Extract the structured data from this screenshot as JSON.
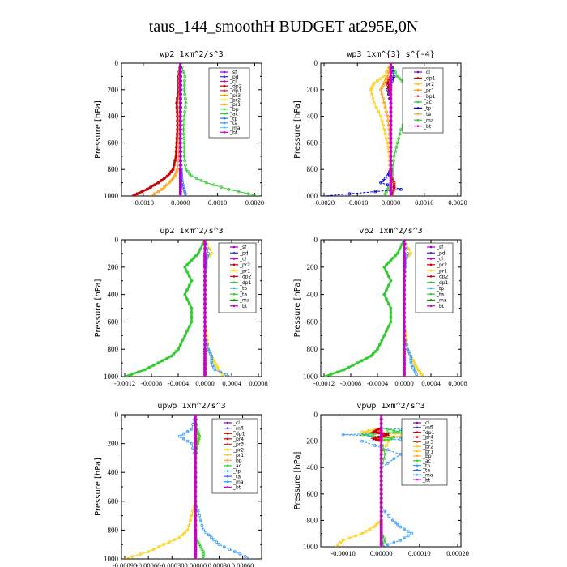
{
  "figure": {
    "title": "taus_144_smoothH  BUDGET at295E,0N"
  },
  "chart_data": [
    {
      "type": "line",
      "title": "wp2   1xm^2/s^3",
      "ylabel": "Pressure [hPa]",
      "xlim": [
        -0.0015,
        0.0021
      ],
      "ylim": [
        1000,
        0
      ],
      "xticks": [
        "-0.0010",
        "0.0000",
        "0.0010",
        "0.0020"
      ],
      "xtick_values": [
        -0.001,
        0.0,
        0.001,
        0.002
      ],
      "yticks": [
        "0",
        "200",
        "400",
        "600",
        "800",
        "1000"
      ],
      "ytick_values": [
        0,
        200,
        400,
        600,
        800,
        1000
      ],
      "legend_position": "upper-right",
      "legend": [
        "_sf",
        "_pd",
        "_cl",
        "_dp2",
        "_dp1",
        "_pr3",
        "_pr2",
        "_pr1",
        "_bp",
        "_ac",
        "_tp",
        "_ta",
        "_ma",
        "_bt"
      ],
      "p": [
        0,
        100,
        200,
        300,
        400,
        500,
        600,
        700,
        800,
        850,
        900,
        950,
        1000
      ],
      "series": [
        {
          "name": "_ac",
          "color": "#33cc33",
          "values": [
            0,
            0.00012,
            0.0001,
            0.00015,
            0.0001,
            8e-05,
            0.0001,
            0.0001,
            0.00015,
            0.0003,
            0.0007,
            0.0013,
            0.0021
          ]
        },
        {
          "name": "_dp2",
          "color": "#cc0000",
          "values": [
            0,
            -5e-05,
            -5e-05,
            -0.0001,
            -8e-05,
            -8e-05,
            -0.0001,
            -0.00012,
            -0.0002,
            -0.00035,
            -0.0006,
            -0.0009,
            -0.0013
          ]
        },
        {
          "name": "_pr1",
          "color": "#ff9900",
          "values": [
            0,
            -2e-05,
            -2e-05,
            -3e-05,
            -3e-05,
            -3e-05,
            -4e-05,
            -5e-05,
            -8e-05,
            -0.00015,
            -0.0003,
            -0.0005,
            -0.0008
          ]
        },
        {
          "name": "_tp",
          "color": "#3366ff",
          "values": [
            0,
            1e-05,
            1e-05,
            1e-05,
            0,
            0,
            0,
            1e-05,
            2e-05,
            3e-05,
            5e-05,
            0.0001,
            0.00015
          ]
        },
        {
          "name": "_bt",
          "color": "#cc00cc",
          "values": [
            0,
            0,
            0,
            0,
            0,
            0,
            0,
            0,
            0,
            0,
            0,
            0,
            0
          ]
        },
        {
          "name": "_sf",
          "color": "#9900cc",
          "values": [
            0,
            0,
            0,
            0,
            0,
            0,
            0,
            0,
            0,
            0,
            0,
            0,
            0
          ]
        }
      ]
    },
    {
      "type": "line",
      "title": "wp3   1xm^{3} s^{-4}",
      "ylabel": "Pressure [hPa]",
      "xlim": [
        -0.002,
        0.002
      ],
      "ylim": [
        1000,
        0
      ],
      "xticks": [
        "-0.0020",
        "-0.0010",
        "0.0000",
        "0.0010",
        "0.0020"
      ],
      "xtick_values": [
        -0.002,
        -0.001,
        0.0,
        0.001,
        0.002
      ],
      "yticks": [
        "0",
        "200",
        "400",
        "600",
        "800",
        "1000"
      ],
      "ytick_values": [
        0,
        200,
        400,
        600,
        800,
        1000
      ],
      "legend_position": "upper-right",
      "legend": [
        "_cl",
        "_dp1",
        "_pr2",
        "_pr1",
        "_bp1",
        "_ac",
        "_tp",
        "_ta",
        "_ma",
        "_bt"
      ],
      "p": [
        0,
        100,
        150,
        200,
        300,
        400,
        500,
        600,
        700,
        800,
        850,
        900,
        950,
        1000
      ],
      "series": [
        {
          "name": "_ac",
          "color": "#33cc33",
          "values": [
            0,
            0.0002,
            0.0004,
            0.0007,
            0.0008,
            0.0005,
            0.0003,
            0.0002,
            0.0001,
            5e-05,
            3e-05,
            0.0,
            -0.0001,
            -0.0002
          ]
        },
        {
          "name": "_pr2",
          "color": "#ffcc00",
          "values": [
            0,
            -0.0002,
            -0.0005,
            -0.0006,
            -0.0005,
            -0.0003,
            -0.0002,
            -0.0001,
            -5e-05,
            -3e-05,
            0.0,
            0.0,
            0.0,
            0.0
          ]
        },
        {
          "name": "_pr1",
          "color": "#ff9900",
          "values": [
            0,
            -0.0001,
            -0.0002,
            -0.0003,
            -0.0002,
            -0.0001,
            -5e-05,
            -3e-05,
            0.0,
            0.0,
            0.0,
            0.0,
            0.0,
            0.0
          ]
        },
        {
          "name": "_tp",
          "color": "#0000cc",
          "values": [
            0,
            0.0001,
            0.0,
            -0.0001,
            0.0,
            0.0,
            0.0,
            0.0,
            0.0,
            0.0,
            -0.0001,
            -0.0003,
            0.0003,
            -0.002
          ]
        },
        {
          "name": "_dp1",
          "color": "#cc0000",
          "values": [
            0,
            0.0,
            -0.0001,
            -5e-05,
            0.0,
            0.0,
            0.0,
            0.0,
            0.0,
            0.0,
            0.0,
            0.0001,
            0.0001,
            0.0
          ]
        },
        {
          "name": "_bt",
          "color": "#cc00cc",
          "values": [
            0,
            0,
            0,
            0,
            0,
            0,
            0,
            0,
            0,
            0,
            0,
            0,
            0,
            0
          ]
        }
      ]
    },
    {
      "type": "line",
      "title": "up2   1xm^2/s^3",
      "ylabel": "Pressure [hPa]",
      "xlim": [
        -0.0012,
        0.0008
      ],
      "ylim": [
        1000,
        0
      ],
      "xticks": [
        "-0.0012",
        "-0.0008",
        "-0.0004",
        "0.0000",
        "0.0004",
        "0.0008"
      ],
      "xtick_values": [
        -0.0012,
        -0.0008,
        -0.0004,
        0.0,
        0.0004,
        0.0008
      ],
      "yticks": [
        "0",
        "200",
        "400",
        "600",
        "800",
        "1000"
      ],
      "ytick_values": [
        0,
        200,
        400,
        600,
        800,
        1000
      ],
      "legend_position": "upper-right",
      "legend": [
        "_sf",
        "_pd",
        "_cl",
        "_pr2",
        "_pr1",
        "_dp2",
        "_dp1",
        "_tp",
        "_ta",
        "_ma",
        "_bt"
      ],
      "p": [
        0,
        100,
        150,
        200,
        300,
        400,
        500,
        600,
        700,
        800,
        850,
        900,
        950,
        1000
      ],
      "series": [
        {
          "name": "_dp1",
          "color": "#33cc33",
          "values": [
            0,
            -0.0001,
            -0.0002,
            -0.0003,
            -0.0002,
            -0.0003,
            -0.0002,
            -0.0002,
            -0.0003,
            -0.0004,
            -0.0005,
            -0.0007,
            -0.0009,
            -0.0012
          ]
        },
        {
          "name": "_pr1",
          "color": "#ffcc00",
          "values": [
            0,
            0.0001,
            0.0,
            0.0,
            0.0,
            0.0,
            0.0,
            0.0,
            3e-05,
            5e-05,
            0.0001,
            0.00015,
            0.0002,
            0.0003
          ]
        },
        {
          "name": "_tp",
          "color": "#3399ff",
          "values": [
            0,
            5e-05,
            2e-05,
            2e-05,
            0.0,
            0.0,
            0.0,
            0.0,
            0.0,
            5e-05,
            0.0001,
            0.0001,
            0.00015,
            0.0004
          ]
        },
        {
          "name": "_dp2",
          "color": "#cc0000",
          "values": [
            0,
            0,
            0,
            0,
            0,
            0,
            0,
            0,
            0,
            0,
            0,
            0,
            0,
            0
          ]
        },
        {
          "name": "_bt",
          "color": "#cc00cc",
          "values": [
            0,
            0,
            0,
            0,
            0,
            0,
            0,
            0,
            0,
            0,
            0,
            0,
            0,
            0
          ]
        }
      ]
    },
    {
      "type": "line",
      "title": "vp2   1xm^2/s^3",
      "ylabel": "Pressure [hPa]",
      "xlim": [
        -0.0012,
        0.0008
      ],
      "ylim": [
        1000,
        0
      ],
      "xticks": [
        "-0.0012",
        "-0.0008",
        "-0.0004",
        "0.0000",
        "0.0004",
        "0.0008"
      ],
      "xtick_values": [
        -0.0012,
        -0.0008,
        -0.0004,
        0.0,
        0.0004,
        0.0008
      ],
      "yticks": [
        "0",
        "200",
        "400",
        "600",
        "800",
        "1000"
      ],
      "ytick_values": [
        0,
        200,
        400,
        600,
        800,
        1000
      ],
      "legend_position": "upper-right",
      "legend": [
        "_sf",
        "_pd",
        "_cl",
        "_pr2",
        "_pr1",
        "_dp2",
        "_dp1",
        "_tp",
        "_ta",
        "_ma",
        "_bt"
      ],
      "p": [
        0,
        100,
        150,
        200,
        300,
        400,
        500,
        600,
        700,
        800,
        850,
        900,
        950,
        1000
      ],
      "series": [
        {
          "name": "_dp1",
          "color": "#33cc33",
          "values": [
            0,
            -0.0001,
            -0.0002,
            -0.0003,
            -0.0002,
            -0.0003,
            -0.0002,
            -0.0002,
            -0.0003,
            -0.0004,
            -0.0005,
            -0.0007,
            -0.0009,
            -0.0012
          ]
        },
        {
          "name": "_pr1",
          "color": "#ffcc00",
          "values": [
            0,
            0.0001,
            0.0,
            0.0,
            0.0,
            0.0,
            0.0,
            0.0,
            3e-05,
            5e-05,
            0.0001,
            0.00015,
            0.0002,
            0.0003
          ]
        },
        {
          "name": "_tp",
          "color": "#3399ff",
          "values": [
            0,
            5e-05,
            2e-05,
            2e-05,
            0.0,
            0.0,
            0.0,
            0.0,
            0.0,
            5e-05,
            0.0001,
            0.0001,
            0.00015,
            0.0002
          ]
        },
        {
          "name": "_dp2",
          "color": "#cc0000",
          "values": [
            0,
            0,
            0,
            0,
            0,
            0,
            0,
            0,
            0,
            0,
            0,
            0,
            0,
            0
          ]
        },
        {
          "name": "_bt",
          "color": "#cc00cc",
          "values": [
            0,
            0,
            0,
            0,
            0,
            0,
            0,
            0,
            0,
            0,
            0,
            0,
            0,
            0
          ]
        }
      ]
    },
    {
      "type": "line",
      "title": "upwp   1xm^2/s^3",
      "ylabel": "Pressure [hPa]",
      "xlim": [
        -0.0009,
        0.0008
      ],
      "ylim": [
        1000,
        0
      ],
      "xticks": [
        "-0.00090",
        "-0.00060",
        "-0.00030",
        "0.00000",
        "0.00030",
        "0.00060"
      ],
      "xtick_values": [
        -0.0009,
        -0.0006,
        -0.0003,
        0.0,
        0.0003,
        0.0006
      ],
      "yticks": [
        "0",
        "200",
        "400",
        "600",
        "800",
        "1000"
      ],
      "ytick_values": [
        0,
        200,
        400,
        600,
        800,
        1000
      ],
      "legend_position": "upper-right",
      "legend": [
        "_cl",
        "_mfl",
        "_dp1",
        "_pr4",
        "_pr3",
        "_pr2",
        "_pr1",
        "_bp",
        "_ac",
        "_tp",
        "_ta",
        "_ma",
        "_bt"
      ],
      "p": [
        0,
        100,
        150,
        200,
        300,
        400,
        500,
        600,
        700,
        800,
        850,
        900,
        950,
        1000
      ],
      "series": [
        {
          "name": "_tp",
          "color": "#3399ff",
          "values": [
            0,
            -5e-05,
            -0.0002,
            -5e-05,
            0.0,
            0.0,
            0.0,
            0.0,
            5e-05,
            0.0001,
            0.0002,
            0.0003,
            0.0005,
            0.0007
          ]
        },
        {
          "name": "_pr2",
          "color": "#ffcc00",
          "values": [
            0,
            0.0,
            5e-05,
            2e-05,
            0.0,
            0.0,
            0.0,
            0.0,
            -5e-05,
            -0.0001,
            -0.0002,
            -0.0004,
            -0.0006,
            -0.0009
          ]
        },
        {
          "name": "_ac",
          "color": "#33cc33",
          "values": [
            0,
            2e-05,
            5e-05,
            3e-05,
            0.0,
            0.0,
            0.0,
            0.0,
            0.0,
            0.0,
            0.0,
            5e-05,
            0.0001,
            0.0001
          ]
        },
        {
          "name": "_dp1",
          "color": "#cc0000",
          "values": [
            0,
            0,
            0,
            0,
            0,
            0,
            0,
            0,
            0,
            0,
            0,
            0,
            0,
            0
          ]
        },
        {
          "name": "_bt",
          "color": "#cc00cc",
          "values": [
            0,
            0,
            0,
            0,
            0,
            0,
            0,
            0,
            0,
            0,
            0,
            0,
            0,
            0
          ]
        }
      ]
    },
    {
      "type": "line",
      "title": "vpwp   1xm^2/s^3",
      "ylabel": "Pressure [hPa]",
      "xlim": [
        -0.00015,
        0.0002
      ],
      "ylim": [
        1000,
        0
      ],
      "xticks": [
        "-0.00010",
        "0.00000",
        "0.00010",
        "0.00020"
      ],
      "xtick_values": [
        -0.0001,
        0.0,
        0.0001,
        0.0002
      ],
      "yticks": [
        "0",
        "200",
        "400",
        "600",
        "800",
        "1000"
      ],
      "ytick_values": [
        0,
        200,
        400,
        600,
        800,
        1000
      ],
      "legend_position": "upper-right",
      "legend": [
        "_cl",
        "_mfl",
        "_dp1",
        "_pr4",
        "_pr3",
        "_pr2",
        "_pr1",
        "_bp",
        "_ac",
        "_tp",
        "_ta",
        "_ma",
        "_bt"
      ],
      "p": [
        0,
        100,
        130,
        150,
        180,
        200,
        300,
        400,
        500,
        600,
        700,
        800,
        850,
        900,
        950,
        1000
      ],
      "series": [
        {
          "name": "_tp",
          "color": "#3399ff",
          "values": [
            0,
            0.0,
            0.00015,
            -0.0001,
            0.0001,
            -5e-05,
            5e-05,
            0.0,
            0.0,
            0.0,
            0.0,
            3e-05,
            5e-05,
            8e-05,
            5e-05,
            0.0
          ]
        },
        {
          "name": "_pr2",
          "color": "#ffcc00",
          "values": [
            0,
            0.0,
            -5e-05,
            8e-05,
            0.0,
            2e-05,
            0.0,
            0.0,
            0.0,
            0.0,
            0.0,
            0.0,
            -2e-05,
            -5e-05,
            -0.0001,
            -0.00012
          ]
        },
        {
          "name": "_ac",
          "color": "#33cc33",
          "values": [
            0,
            0.0,
            5e-05,
            -5e-05,
            3e-05,
            0.0,
            1e-05,
            0.0,
            0.0,
            0.0,
            0.0,
            0.0,
            0.0,
            0.0,
            1e-05,
            0.0
          ]
        },
        {
          "name": "_dp1",
          "color": "#cc0000",
          "values": [
            0,
            0.0,
            -2e-05,
            2e-05,
            -2e-05,
            0.0,
            0.0,
            0.0,
            0.0,
            0.0,
            0.0,
            0.0,
            0.0,
            0.0,
            0.0,
            0.0
          ]
        },
        {
          "name": "_bt",
          "color": "#cc00cc",
          "values": [
            0,
            0,
            0,
            0,
            0,
            0,
            0,
            0,
            0,
            0,
            0,
            0,
            0,
            0,
            0,
            0
          ]
        }
      ]
    }
  ]
}
